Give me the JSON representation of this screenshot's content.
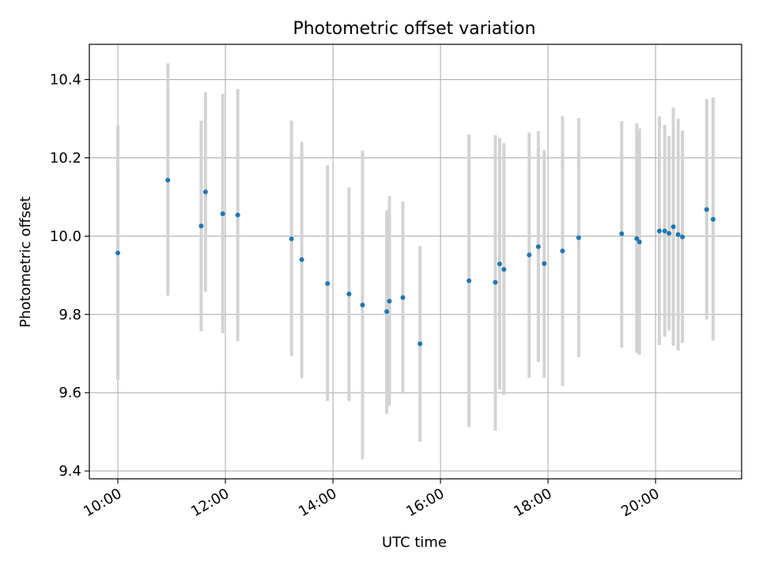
{
  "chart_data": {
    "type": "scatter",
    "title": "Photometric offset variation",
    "xlabel": "UTC time",
    "ylabel": "Photometric offset",
    "xlim": [
      9.47,
      21.6
    ],
    "ylim": [
      9.38,
      10.49
    ],
    "grid": true,
    "x_ticks": [
      {
        "value": 10,
        "label": "10:00"
      },
      {
        "value": 12,
        "label": "12:00"
      },
      {
        "value": 14,
        "label": "14:00"
      },
      {
        "value": 16,
        "label": "16:00"
      },
      {
        "value": 18,
        "label": "18:00"
      },
      {
        "value": 20,
        "label": "20:00"
      }
    ],
    "y_ticks": [
      {
        "value": 9.4,
        "label": "9.4"
      },
      {
        "value": 9.6,
        "label": "9.6"
      },
      {
        "value": 9.8,
        "label": "9.8"
      },
      {
        "value": 10.0,
        "label": "10.0"
      },
      {
        "value": 10.2,
        "label": "10.2"
      },
      {
        "value": 10.4,
        "label": "10.4"
      }
    ],
    "series": [
      {
        "name": "Photometric offset",
        "color": "#1f77b4",
        "errorbar_color": "#d3d3d3",
        "points": [
          {
            "x": 10.0,
            "y": 9.957,
            "lo": 9.633,
            "hi": 10.283
          },
          {
            "x": 10.93,
            "y": 10.143,
            "lo": 9.848,
            "hi": 10.442
          },
          {
            "x": 11.55,
            "y": 10.026,
            "lo": 9.757,
            "hi": 10.295
          },
          {
            "x": 11.63,
            "y": 10.113,
            "lo": 9.858,
            "hi": 10.368
          },
          {
            "x": 11.95,
            "y": 10.057,
            "lo": 9.752,
            "hi": 10.364
          },
          {
            "x": 12.23,
            "y": 10.054,
            "lo": 9.731,
            "hi": 10.376
          },
          {
            "x": 13.23,
            "y": 9.993,
            "lo": 9.694,
            "hi": 10.295
          },
          {
            "x": 13.42,
            "y": 9.94,
            "lo": 9.637,
            "hi": 10.241
          },
          {
            "x": 13.9,
            "y": 9.879,
            "lo": 9.579,
            "hi": 10.181
          },
          {
            "x": 14.3,
            "y": 9.852,
            "lo": 9.579,
            "hi": 10.124
          },
          {
            "x": 14.55,
            "y": 9.824,
            "lo": 9.43,
            "hi": 10.218
          },
          {
            "x": 15.0,
            "y": 9.807,
            "lo": 9.546,
            "hi": 10.066
          },
          {
            "x": 15.05,
            "y": 9.834,
            "lo": 9.567,
            "hi": 10.102
          },
          {
            "x": 15.3,
            "y": 9.843,
            "lo": 9.597,
            "hi": 10.089
          },
          {
            "x": 15.62,
            "y": 9.725,
            "lo": 9.475,
            "hi": 9.975
          },
          {
            "x": 16.53,
            "y": 9.886,
            "lo": 9.512,
            "hi": 10.26
          },
          {
            "x": 17.02,
            "y": 9.882,
            "lo": 9.503,
            "hi": 10.258
          },
          {
            "x": 17.1,
            "y": 9.929,
            "lo": 9.608,
            "hi": 10.251
          },
          {
            "x": 17.18,
            "y": 9.915,
            "lo": 9.594,
            "hi": 10.238
          },
          {
            "x": 17.65,
            "y": 9.952,
            "lo": 9.638,
            "hi": 10.265
          },
          {
            "x": 17.82,
            "y": 9.973,
            "lo": 9.679,
            "hi": 10.268
          },
          {
            "x": 17.93,
            "y": 9.93,
            "lo": 9.638,
            "hi": 10.22
          },
          {
            "x": 18.27,
            "y": 9.962,
            "lo": 9.617,
            "hi": 10.306
          },
          {
            "x": 18.57,
            "y": 9.996,
            "lo": 9.691,
            "hi": 10.302
          },
          {
            "x": 19.37,
            "y": 10.006,
            "lo": 9.715,
            "hi": 10.294
          },
          {
            "x": 19.65,
            "y": 9.994,
            "lo": 9.702,
            "hi": 10.288
          },
          {
            "x": 19.7,
            "y": 9.985,
            "lo": 9.696,
            "hi": 10.275
          },
          {
            "x": 20.07,
            "y": 10.013,
            "lo": 9.722,
            "hi": 10.306
          },
          {
            "x": 20.17,
            "y": 10.013,
            "lo": 9.743,
            "hi": 10.284
          },
          {
            "x": 20.25,
            "y": 10.007,
            "lo": 9.759,
            "hi": 10.256
          },
          {
            "x": 20.33,
            "y": 10.024,
            "lo": 9.72,
            "hi": 10.328
          },
          {
            "x": 20.42,
            "y": 10.004,
            "lo": 9.708,
            "hi": 10.3
          },
          {
            "x": 20.5,
            "y": 9.998,
            "lo": 9.727,
            "hi": 10.27
          },
          {
            "x": 20.95,
            "y": 10.068,
            "lo": 9.787,
            "hi": 10.35
          },
          {
            "x": 21.07,
            "y": 10.043,
            "lo": 9.733,
            "hi": 10.354
          }
        ]
      }
    ]
  }
}
